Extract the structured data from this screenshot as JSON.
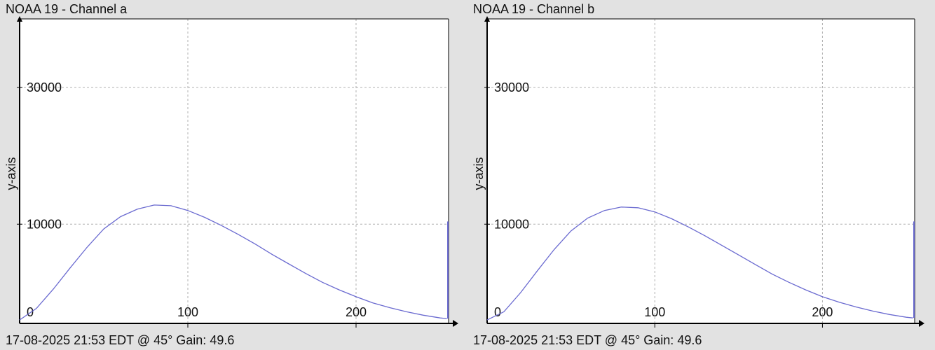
{
  "charts": [
    {
      "id": "a",
      "title": "NOAA 19 - Channel a",
      "footer": "17-08-2025 21:53 EDT @ 45° Gain: 49.6"
    },
    {
      "id": "b",
      "title": "NOAA 19 - Channel b",
      "footer": "17-08-2025 21:53 EDT @ 45° Gain: 49.6"
    }
  ],
  "colors": {
    "series": "#6a6ad0",
    "grid": "#b0b0b0",
    "plot_background": "#ffffff",
    "axis": "#000000"
  },
  "chart_data": [
    {
      "type": "line",
      "title": "NOAA 19 - Channel a",
      "xlabel": "",
      "ylabel": "y-axis",
      "xlim": [
        0,
        255
      ],
      "ylim": [
        -4500,
        40000
      ],
      "x_ticks": [
        100,
        200
      ],
      "y_ticks": [
        10000,
        30000
      ],
      "origin_label": "0",
      "grid": true,
      "series": [
        {
          "x": [
            0,
            10,
            20,
            30,
            40,
            50,
            60,
            70,
            80,
            90,
            100,
            110,
            120,
            130,
            140,
            150,
            160,
            170,
            180,
            190,
            200,
            210,
            220,
            230,
            240,
            250,
            254
          ],
          "values": [
            -4000,
            -2300,
            500,
            3600,
            6600,
            9300,
            11100,
            12200,
            12800,
            12700,
            12000,
            11000,
            9800,
            8500,
            7100,
            5600,
            4200,
            2800,
            1500,
            400,
            -600,
            -1500,
            -2200,
            -2800,
            -3300,
            -3700,
            -3800
          ],
          "spike_at_end": 10400
        }
      ]
    },
    {
      "type": "line",
      "title": "NOAA 19 - Channel b",
      "xlabel": "",
      "ylabel": "y-axis",
      "xlim": [
        0,
        255
      ],
      "ylim": [
        -4500,
        40000
      ],
      "x_ticks": [
        100,
        200
      ],
      "y_ticks": [
        10000,
        30000
      ],
      "origin_label": "0",
      "grid": true,
      "series": [
        {
          "x": [
            0,
            10,
            20,
            30,
            40,
            50,
            60,
            70,
            80,
            90,
            100,
            110,
            120,
            130,
            140,
            150,
            160,
            170,
            180,
            190,
            200,
            210,
            220,
            230,
            240,
            250,
            254
          ],
          "values": [
            -4000,
            -2800,
            0,
            3200,
            6300,
            9000,
            10900,
            12000,
            12500,
            12400,
            11800,
            10800,
            9600,
            8300,
            6900,
            5500,
            4100,
            2700,
            1500,
            400,
            -600,
            -1400,
            -2100,
            -2700,
            -3200,
            -3600,
            -3700
          ],
          "spike_at_end": 10400
        }
      ]
    }
  ]
}
